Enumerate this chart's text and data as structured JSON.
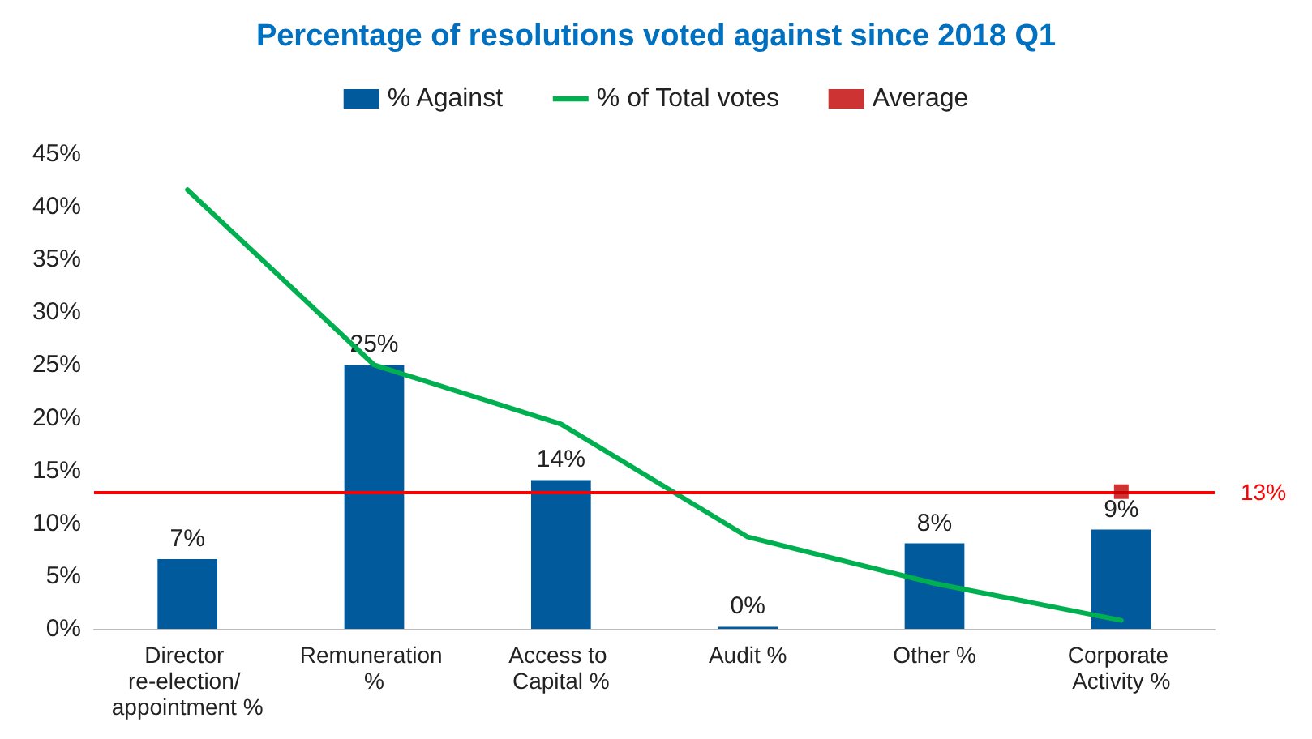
{
  "chart_data": {
    "type": "bar",
    "title": "Percentage of resolutions voted against since 2018 Q1",
    "categories": [
      "Director re-election/ appointment %",
      "Remuneration %",
      "Access to Capital %",
      "Audit %",
      "Other %",
      "Corporate Activity %"
    ],
    "series": [
      {
        "name": "% Against",
        "color": "#005a9c",
        "values": [
          6.6,
          25,
          14.1,
          0.2,
          8.1,
          9.4
        ],
        "value_labels": [
          "7%",
          "25%",
          "14%",
          "0%",
          "8%",
          "9%"
        ]
      },
      {
        "name": "% of Total votes",
        "type": "line",
        "color": "#00b050",
        "values": [
          41.6,
          25,
          19.4,
          8.7,
          4.3,
          0.8
        ]
      },
      {
        "name": "Average",
        "type": "scatter",
        "color": "#c00000",
        "marker": "square",
        "values": [
          null,
          null,
          null,
          null,
          null,
          13
        ]
      }
    ],
    "ylim": [
      0,
      45
    ],
    "yticks": [
      {
        "value": 0,
        "label": "0%"
      },
      {
        "value": 5,
        "label": "5%"
      },
      {
        "value": 10,
        "label": "10%"
      },
      {
        "value": 15,
        "label": "15%"
      },
      {
        "value": 20,
        "label": "20%"
      },
      {
        "value": 25,
        "label": "25%"
      },
      {
        "value": 30,
        "label": "30%"
      },
      {
        "value": 35,
        "label": "35%"
      },
      {
        "value": 40,
        "label": "40%"
      },
      {
        "value": 45,
        "label": "45%"
      }
    ],
    "ref_lines": [
      {
        "axis": "y",
        "value": 13,
        "label": "13%",
        "color": "#ff0000"
      }
    ],
    "legend": "top",
    "grid": false
  }
}
